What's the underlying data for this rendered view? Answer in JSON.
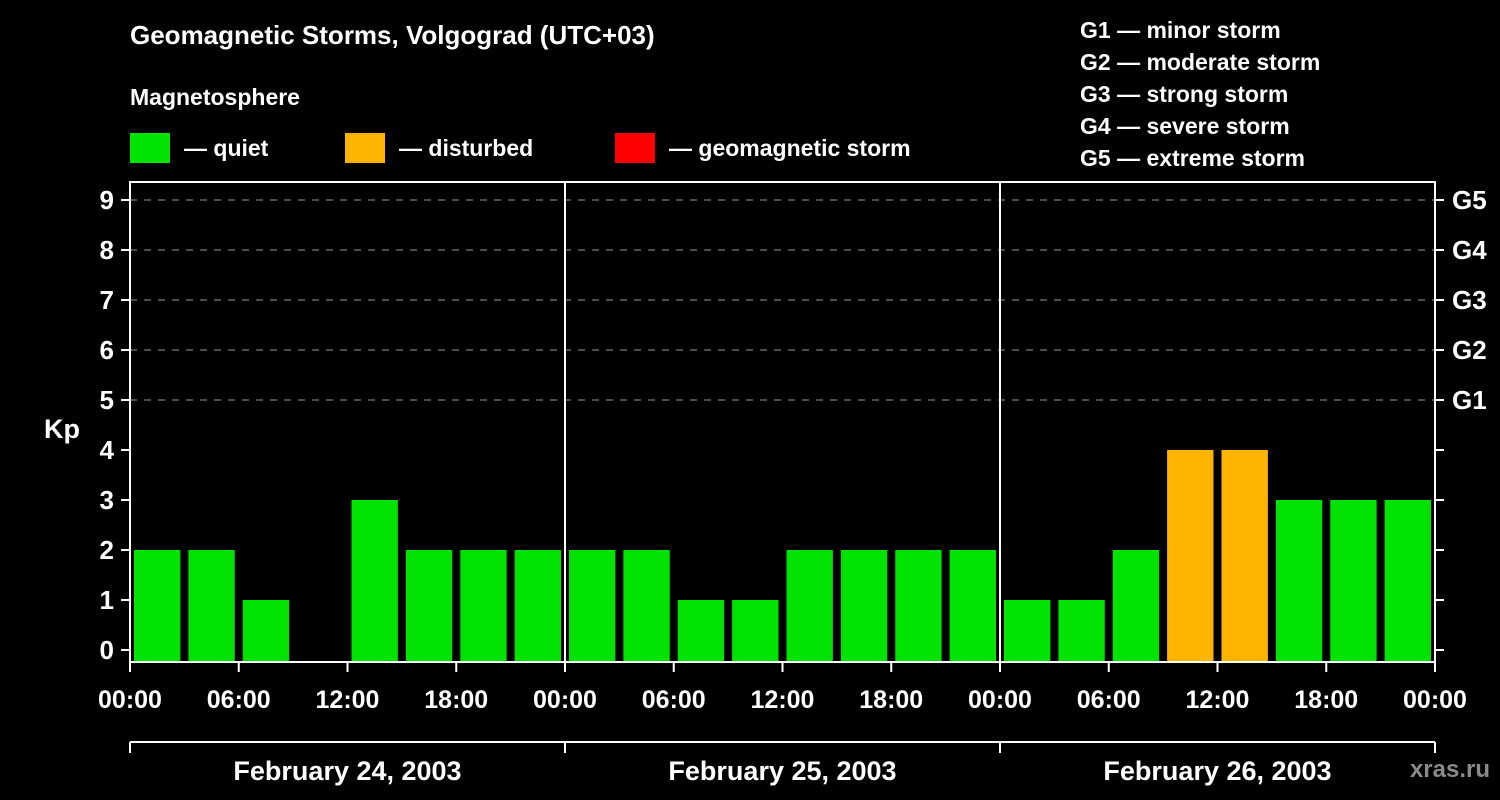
{
  "header": {
    "title": "Geomagnetic Storms, Volgograd (UTC+03)",
    "subtitle": "Magnetosphere"
  },
  "legend": {
    "items": [
      {
        "name": "quiet",
        "label": "— quiet",
        "color": "#00e300"
      },
      {
        "name": "disturbed",
        "label": "— disturbed",
        "color": "#ffb400"
      },
      {
        "name": "storm",
        "label": "— geomagnetic storm",
        "color": "#ff0000"
      }
    ]
  },
  "g_legend": {
    "items": [
      "G1 — minor storm",
      "G2 — moderate storm",
      "G3 — strong storm",
      "G4 — severe storm",
      "G5 — extreme storm"
    ]
  },
  "axes": {
    "y_label": "Kp",
    "y_ticks": [
      0,
      1,
      2,
      3,
      4,
      5,
      6,
      7,
      8,
      9
    ],
    "x_ticks": [
      "00:00",
      "06:00",
      "12:00",
      "18:00"
    ],
    "x_end_label": "00:00"
  },
  "chart_data": {
    "type": "bar",
    "title": "Geomagnetic Storms, Volgograd (UTC+03)",
    "ylabel": "Kp",
    "ylim": [
      0,
      9
    ],
    "interval_hours": 3,
    "grid": "dashed horizontal at G-levels only",
    "legend_position": "top",
    "days": [
      {
        "date": "February 24, 2003",
        "values": [
          2,
          2,
          1,
          0,
          3,
          2,
          2,
          2
        ],
        "statuses": [
          "quiet",
          "quiet",
          "quiet",
          "quiet",
          "quiet",
          "quiet",
          "quiet",
          "quiet"
        ]
      },
      {
        "date": "February 25, 2003",
        "values": [
          2,
          2,
          1,
          1,
          2,
          2,
          2,
          2
        ],
        "statuses": [
          "quiet",
          "quiet",
          "quiet",
          "quiet",
          "quiet",
          "quiet",
          "quiet",
          "quiet"
        ]
      },
      {
        "date": "February 26, 2003",
        "values": [
          1,
          1,
          2,
          4,
          4,
          3,
          3,
          3
        ],
        "statuses": [
          "quiet",
          "quiet",
          "quiet",
          "disturbed",
          "disturbed",
          "quiet",
          "quiet",
          "quiet"
        ]
      }
    ],
    "g_levels": [
      {
        "label": "G1",
        "kp": 5
      },
      {
        "label": "G2",
        "kp": 6
      },
      {
        "label": "G3",
        "kp": 7
      },
      {
        "label": "G4",
        "kp": 8
      },
      {
        "label": "G5",
        "kp": 9
      }
    ]
  },
  "watermark": "xras.ru"
}
